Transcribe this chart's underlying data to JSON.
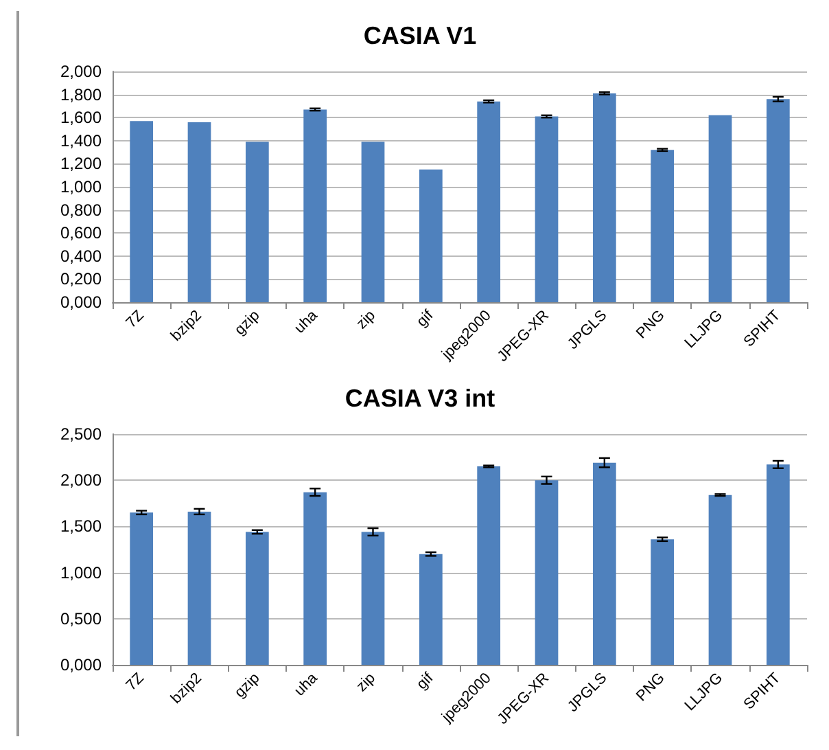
{
  "chart_data": [
    {
      "type": "bar",
      "title": "CASIA V1",
      "categories": [
        "7Z",
        "bzip2",
        "gzip",
        "uha",
        "zip",
        "gif",
        "jpeg2000",
        "JPEG-XR",
        "JPGLS",
        "PNG",
        "LLJPG",
        "SPIHT"
      ],
      "series": [
        {
          "color": "#4f81bd",
          "values": [
            1.57,
            1.56,
            1.39,
            1.67,
            1.39,
            1.15,
            1.74,
            1.61,
            1.81,
            1.32,
            1.62,
            1.76
          ],
          "errors": [
            null,
            null,
            null,
            0.01,
            null,
            null,
            0.01,
            0.01,
            0.01,
            0.01,
            null,
            0.02
          ]
        }
      ],
      "ylim": [
        0,
        2
      ],
      "yticks": [
        {
          "value": 0,
          "label": "0,000"
        },
        {
          "value": 0.2,
          "label": "0,200"
        },
        {
          "value": 0.4,
          "label": "0,400"
        },
        {
          "value": 0.6,
          "label": "0,600"
        },
        {
          "value": 0.8,
          "label": "0,800"
        },
        {
          "value": 1,
          "label": "1,000"
        },
        {
          "value": 1.2,
          "label": "1,200"
        },
        {
          "value": 1.4,
          "label": "1,400"
        },
        {
          "value": 1.6,
          "label": "1,600"
        },
        {
          "value": 1.8,
          "label": "1,800"
        },
        {
          "value": 2,
          "label": "2,000"
        }
      ],
      "grid": "y"
    },
    {
      "type": "bar",
      "title": "CASIA V3 int",
      "categories": [
        "7Z",
        "bzip2",
        "gzip",
        "uha",
        "zip",
        "gif",
        "jpeg2000",
        "JPEG-XR",
        "JPGLS",
        "PNG",
        "LLJPG",
        "SPIHT"
      ],
      "series": [
        {
          "color": "#4f81bd",
          "values": [
            1.65,
            1.66,
            1.44,
            1.87,
            1.44,
            1.2,
            2.15,
            2.0,
            2.19,
            1.36,
            1.84,
            2.17
          ],
          "errors": [
            0.02,
            0.03,
            0.02,
            0.04,
            0.04,
            0.02,
            0.01,
            0.04,
            0.05,
            0.02,
            0.01,
            0.04
          ]
        }
      ],
      "ylim": [
        0,
        2.5
      ],
      "yticks": [
        {
          "value": 0,
          "label": "0,000"
        },
        {
          "value": 0.5,
          "label": "0,500"
        },
        {
          "value": 1,
          "label": "1,000"
        },
        {
          "value": 1.5,
          "label": "1,500"
        },
        {
          "value": 2,
          "label": "2,000"
        },
        {
          "value": 2.5,
          "label": "2,500"
        }
      ],
      "grid": "y"
    }
  ]
}
